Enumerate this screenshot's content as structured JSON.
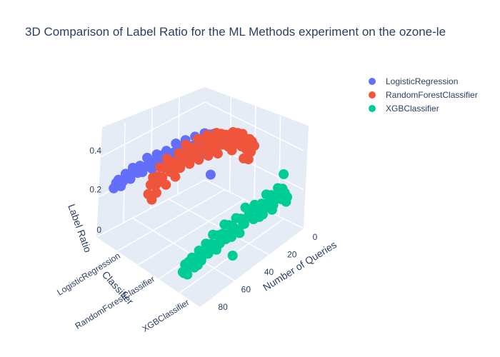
{
  "chart_data": {
    "type": "scatter3d",
    "title": "3D Comparison of Label Ratio for the ML Methods experiment on the ozone-le",
    "axes": {
      "x": {
        "label": "Number of Queries",
        "ticks": [
          "0",
          "20",
          "40",
          "60",
          "80"
        ],
        "range": [
          0,
          90
        ]
      },
      "y": {
        "label": "Classifier",
        "ticks": [
          "LogisticRegression",
          "RandomForestClassifier",
          "XGBClassifier"
        ]
      },
      "z": {
        "label": "Label Ratio",
        "ticks": [
          "0",
          "0.2",
          "0.4"
        ],
        "range": [
          0,
          0.55
        ]
      }
    },
    "legend": {
      "placement": "top-right",
      "items": [
        {
          "name": "LogisticRegression",
          "color": "#636efa"
        },
        {
          "name": "RandomForestClassifier",
          "color": "#ef553b"
        },
        {
          "name": "XGBClassifier",
          "color": "#00cc96"
        }
      ]
    },
    "series": [
      {
        "name": "LogisticRegression",
        "color": "#636efa",
        "points": [
          [
            0,
            0.26
          ],
          [
            2,
            0.28
          ],
          [
            4,
            0.27
          ],
          [
            6,
            0.3
          ],
          [
            8,
            0.29
          ],
          [
            10,
            0.31
          ],
          [
            12,
            0.28
          ],
          [
            14,
            0.33
          ],
          [
            16,
            0.3
          ],
          [
            18,
            0.27
          ],
          [
            20,
            0.32
          ],
          [
            22,
            0.34
          ],
          [
            24,
            0.3
          ],
          [
            26,
            0.29
          ],
          [
            28,
            0.31
          ],
          [
            30,
            0.35
          ],
          [
            32,
            0.33
          ],
          [
            34,
            0.3
          ],
          [
            36,
            0.34
          ],
          [
            38,
            0.36
          ],
          [
            40,
            0.32
          ],
          [
            42,
            0.3
          ],
          [
            44,
            0.33
          ],
          [
            46,
            0.35
          ],
          [
            48,
            0.31
          ],
          [
            50,
            0.34
          ],
          [
            52,
            0.32
          ],
          [
            54,
            0.36
          ],
          [
            56,
            0.33
          ],
          [
            58,
            0.3
          ],
          [
            60,
            0.34
          ],
          [
            62,
            0.37
          ],
          [
            64,
            0.33
          ],
          [
            66,
            0.31
          ],
          [
            68,
            0.35
          ],
          [
            70,
            0.32
          ],
          [
            72,
            0.34
          ],
          [
            74,
            0.36
          ],
          [
            76,
            0.31
          ],
          [
            78,
            0.33
          ],
          [
            80,
            0.35
          ],
          [
            82,
            0.32
          ],
          [
            84,
            0.3
          ],
          [
            86,
            0.34
          ],
          [
            88,
            0.33
          ],
          [
            90,
            0.31
          ],
          [
            1,
            0.24
          ],
          [
            5,
            0.22
          ],
          [
            9,
            0.1
          ],
          [
            13,
            0.25
          ],
          [
            17,
            0.23
          ],
          [
            21,
            0.27
          ],
          [
            25,
            0.26
          ],
          [
            29,
            0.24
          ],
          [
            33,
            0.28
          ],
          [
            37,
            0.27
          ]
        ]
      },
      {
        "name": "RandomForestClassifier",
        "color": "#ef553b",
        "points": [
          [
            0,
            0.3
          ],
          [
            2,
            0.33
          ],
          [
            4,
            0.35
          ],
          [
            6,
            0.32
          ],
          [
            8,
            0.37
          ],
          [
            10,
            0.4
          ],
          [
            12,
            0.36
          ],
          [
            14,
            0.42
          ],
          [
            16,
            0.39
          ],
          [
            18,
            0.44
          ],
          [
            20,
            0.41
          ],
          [
            22,
            0.38
          ],
          [
            24,
            0.45
          ],
          [
            26,
            0.43
          ],
          [
            28,
            0.47
          ],
          [
            30,
            0.44
          ],
          [
            32,
            0.49
          ],
          [
            34,
            0.46
          ],
          [
            36,
            0.42
          ],
          [
            38,
            0.48
          ],
          [
            40,
            0.51
          ],
          [
            42,
            0.47
          ],
          [
            44,
            0.5
          ],
          [
            46,
            0.45
          ],
          [
            48,
            0.52
          ],
          [
            50,
            0.48
          ],
          [
            52,
            0.44
          ],
          [
            54,
            0.5
          ],
          [
            56,
            0.46
          ],
          [
            58,
            0.53
          ],
          [
            60,
            0.49
          ],
          [
            62,
            0.45
          ],
          [
            64,
            0.51
          ],
          [
            66,
            0.47
          ],
          [
            68,
            0.43
          ],
          [
            70,
            0.49
          ],
          [
            72,
            0.46
          ],
          [
            74,
            0.52
          ],
          [
            76,
            0.48
          ],
          [
            78,
            0.44
          ],
          [
            80,
            0.5
          ],
          [
            82,
            0.46
          ],
          [
            84,
            0.42
          ],
          [
            86,
            0.47
          ],
          [
            88,
            0.44
          ],
          [
            90,
            0.4
          ],
          [
            3,
            0.28
          ],
          [
            7,
            0.31
          ],
          [
            11,
            0.34
          ],
          [
            15,
            0.37
          ],
          [
            19,
            0.35
          ],
          [
            23,
            0.39
          ],
          [
            27,
            0.41
          ],
          [
            31,
            0.38
          ],
          [
            35,
            0.43
          ],
          [
            39,
            0.4
          ],
          [
            43,
            0.45
          ],
          [
            47,
            0.41
          ],
          [
            51,
            0.46
          ],
          [
            55,
            0.42
          ],
          [
            59,
            0.47
          ],
          [
            63,
            0.43
          ],
          [
            67,
            0.4
          ],
          [
            71,
            0.44
          ],
          [
            75,
            0.39
          ],
          [
            79,
            0.42
          ],
          [
            83,
            0.38
          ],
          [
            87,
            0.36
          ],
          [
            5,
            0.25
          ],
          [
            9,
            0.27
          ]
        ]
      },
      {
        "name": "XGBClassifier",
        "color": "#00cc96",
        "points": [
          [
            0,
            0.12
          ],
          [
            2,
            0.15
          ],
          [
            4,
            0.18
          ],
          [
            6,
            0.14
          ],
          [
            8,
            0.2
          ],
          [
            10,
            0.17
          ],
          [
            12,
            0.13
          ],
          [
            14,
            0.19
          ],
          [
            16,
            0.16
          ],
          [
            18,
            0.21
          ],
          [
            20,
            0.15
          ],
          [
            22,
            0.18
          ],
          [
            24,
            0.12
          ],
          [
            26,
            0.17
          ],
          [
            28,
            0.2
          ],
          [
            30,
            0.14
          ],
          [
            32,
            0.19
          ],
          [
            34,
            0.16
          ],
          [
            36,
            0.22
          ],
          [
            38,
            0.15
          ],
          [
            40,
            0.18
          ],
          [
            42,
            0.13
          ],
          [
            44,
            0.2
          ],
          [
            46,
            0.16
          ],
          [
            48,
            0.12
          ],
          [
            50,
            0.19
          ],
          [
            52,
            0.15
          ],
          [
            54,
            0.21
          ],
          [
            56,
            0.17
          ],
          [
            58,
            0.13
          ],
          [
            60,
            0.18
          ],
          [
            62,
            0.14
          ],
          [
            64,
            0.2
          ],
          [
            66,
            0.16
          ],
          [
            68,
            0.12
          ],
          [
            70,
            0.18
          ],
          [
            72,
            0.15
          ],
          [
            74,
            0.11
          ],
          [
            76,
            0.17
          ],
          [
            78,
            0.14
          ],
          [
            80,
            0.1
          ],
          [
            82,
            0.16
          ],
          [
            84,
            0.13
          ],
          [
            86,
            0.09
          ],
          [
            88,
            0.15
          ],
          [
            90,
            0.12
          ],
          [
            1,
            0.1
          ],
          [
            5,
            0.13
          ],
          [
            9,
            0.15
          ],
          [
            13,
            0.11
          ],
          [
            17,
            0.14
          ],
          [
            21,
            0.12
          ],
          [
            25,
            0.16
          ],
          [
            29,
            0.13
          ],
          [
            33,
            0.17
          ],
          [
            37,
            0.14
          ],
          [
            41,
            0.11
          ],
          [
            45,
            0.15
          ],
          [
            49,
            0.18
          ],
          [
            53,
            0.13
          ],
          [
            57,
            0.16
          ],
          [
            61,
            0.11
          ],
          [
            65,
            0.14
          ],
          [
            69,
            0.17
          ],
          [
            73,
            0.13
          ],
          [
            77,
            0.1
          ],
          [
            81,
            0.12
          ],
          [
            85,
            0.15
          ],
          [
            89,
            0.11
          ],
          [
            3,
            0.25
          ],
          [
            47,
            0.02
          ]
        ]
      }
    ]
  }
}
